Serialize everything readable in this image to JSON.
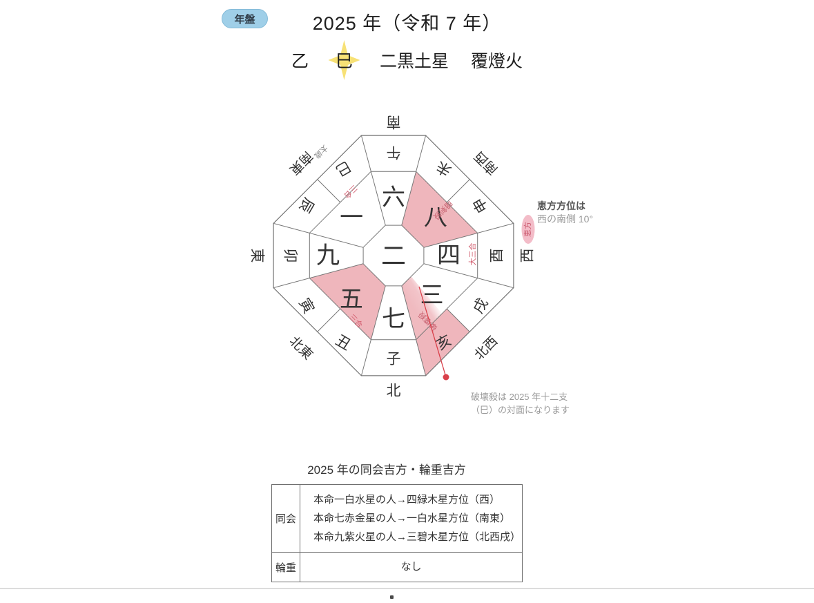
{
  "header": {
    "badge": "年盤",
    "title": "2025 年（令和 7 年）",
    "stem": "乙",
    "branch": "巳",
    "star": "二黒土星",
    "nattin": "覆燈火"
  },
  "colors": {
    "badge_bg": "#9fcfe8",
    "pink": "#efb6bc",
    "line": "#777777",
    "red_mark": "#d25c6e",
    "pointer_red": "#d9404a",
    "burst_yellow": "#f7e176",
    "eho_badge_bg": "#f3bcc8"
  },
  "chart": {
    "center_number": "二",
    "numbers": [
      {
        "label": "六",
        "angle": 0,
        "radius": 84
      },
      {
        "label": "八",
        "angle": 48,
        "radius": 82
      },
      {
        "label": "四",
        "angle": 90,
        "radius": 80
      },
      {
        "label": "三",
        "angle": 136,
        "radius": 80
      },
      {
        "label": "七",
        "angle": 180,
        "radius": 92
      },
      {
        "label": "五",
        "angle": 224,
        "radius": 88
      },
      {
        "label": "九",
        "angle": 270,
        "radius": 95
      },
      {
        "label": "一",
        "angle": 312,
        "radius": 82
      }
    ],
    "pink_number_sectors": [
      [
        15,
        75
      ],
      [
        195,
        255
      ]
    ],
    "zodiac": [
      {
        "label": "午",
        "angle": 0,
        "radius": 150
      },
      {
        "label": "未",
        "angle": 30,
        "radius": 146
      },
      {
        "label": "申",
        "angle": 60,
        "radius": 146
      },
      {
        "label": "酉",
        "angle": 90,
        "radius": 150
      },
      {
        "label": "戌",
        "angle": 120,
        "radius": 146
      },
      {
        "label": "亥",
        "angle": 150,
        "radius": 146,
        "pink": true
      },
      {
        "label": "子",
        "angle": 180,
        "radius": 150
      },
      {
        "label": "丑",
        "angle": 210,
        "radius": 146
      },
      {
        "label": "寅",
        "angle": 240,
        "radius": 146
      },
      {
        "label": "卯",
        "angle": 270,
        "radius": 150
      },
      {
        "label": "辰",
        "angle": 300,
        "radius": 146
      },
      {
        "label": "巳",
        "angle": 330,
        "radius": 146
      }
    ],
    "directions": [
      {
        "label": "南",
        "angle": 0,
        "radius": 194
      },
      {
        "label": "南西",
        "angle": 45,
        "radius": 190
      },
      {
        "label": "西",
        "angle": 90,
        "radius": 194
      },
      {
        "label": "北西",
        "angle": 135,
        "radius": 190
      },
      {
        "label": "北",
        "angle": 180,
        "radius": 196
      },
      {
        "label": "北東",
        "angle": 225,
        "radius": 190
      },
      {
        "label": "東",
        "angle": 270,
        "radius": 198
      },
      {
        "label": "南東",
        "angle": 315,
        "radius": 190
      }
    ],
    "marks": [
      {
        "label": "太歳",
        "angle": 325,
        "radius": 184,
        "rotate": 135,
        "color": "#8a8a8a"
      },
      {
        "label": "三合",
        "angle": 326,
        "radius": 112,
        "rotate": 135,
        "color": "#d25c6e"
      },
      {
        "label": "暗剣殺",
        "angle": 47,
        "radius": 97,
        "rotate": 135,
        "color": "#c75f6e"
      },
      {
        "label": "大三合",
        "angle": 89,
        "radius": 115,
        "rotate": 270,
        "color": "#d25c6e"
      },
      {
        "label": "三合",
        "angle": 210,
        "radius": 110,
        "rotate": 45,
        "color": "#d25c6e"
      },
      {
        "label": "破壊殺",
        "angle": 152,
        "radius": 107,
        "rotate": 225,
        "color": "#c75f6e"
      }
    ],
    "eho_badge": "恵方"
  },
  "annotations": {
    "eho_title": "恵方方位は",
    "eho_body": "西の南側 10°",
    "hakai_line1": "破壊殺は 2025 年十二支",
    "hakai_line2": "（巳）の対面になります"
  },
  "table": {
    "title": "2025 年の同会吉方・輪重吉方",
    "rows": [
      {
        "header": "同会",
        "lines": [
          "本命一白水星の人→四緑木星方位（西）",
          "本命七赤金星の人→一白水星方位（南東）",
          "本命九紫火星の人→三碧木星方位（北西戌）"
        ]
      },
      {
        "header": "輪重",
        "lines": [
          "なし"
        ]
      }
    ]
  }
}
